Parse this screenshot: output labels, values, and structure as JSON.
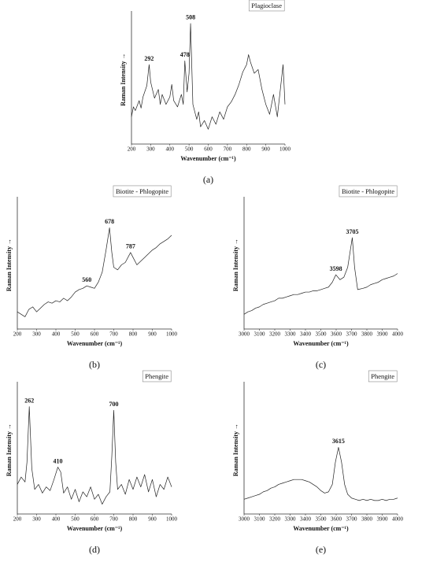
{
  "chart_data": [
    {
      "type": "line",
      "title": "Plagioclase",
      "label": "(a)",
      "x_label": "Wavenumber (cm⁻¹)",
      "y_label": "Raman Intensity →",
      "color": "#222",
      "xlim": [
        200,
        1000
      ],
      "xticks": [
        200,
        300,
        400,
        500,
        600,
        700,
        800,
        900,
        1000
      ],
      "ylim": [
        0,
        100
      ],
      "x": [
        200,
        210,
        220,
        240,
        250,
        260,
        280,
        292,
        300,
        320,
        340,
        350,
        360,
        380,
        400,
        410,
        420,
        440,
        460,
        470,
        478,
        490,
        500,
        508,
        520,
        540,
        550,
        560,
        580,
        600,
        620,
        640,
        660,
        680,
        700,
        720,
        740,
        760,
        780,
        800,
        810,
        820,
        840,
        860,
        880,
        900,
        920,
        940,
        960,
        980,
        990,
        1000
      ],
      "values": [
        20,
        28,
        25,
        33,
        27,
        36,
        45,
        62,
        48,
        35,
        42,
        30,
        38,
        30,
        36,
        46,
        33,
        28,
        38,
        30,
        65,
        40,
        55,
        95,
        30,
        18,
        24,
        12,
        17,
        10,
        20,
        14,
        24,
        18,
        28,
        32,
        38,
        46,
        56,
        62,
        70,
        64,
        55,
        58,
        42,
        30,
        22,
        38,
        20,
        48,
        62,
        30
      ],
      "peaks": [
        292,
        478,
        508
      ]
    },
    {
      "type": "line",
      "title": "Biotite - Phlogopite",
      "label": "(b)",
      "x_label": "Wavenumber (cm⁻¹)",
      "y_label": "Raman Intensity →",
      "color": "#222",
      "xlim": [
        200,
        1000
      ],
      "xticks": [
        200,
        300,
        400,
        500,
        600,
        700,
        800,
        900,
        1000
      ],
      "ylim": [
        0,
        100
      ],
      "x": [
        200,
        220,
        240,
        260,
        280,
        300,
        320,
        340,
        360,
        380,
        400,
        420,
        440,
        460,
        480,
        500,
        520,
        540,
        560,
        580,
        600,
        620,
        640,
        660,
        678,
        690,
        700,
        720,
        740,
        760,
        787,
        800,
        820,
        840,
        860,
        880,
        900,
        920,
        940,
        960,
        980,
        1000
      ],
      "values": [
        12,
        10,
        8,
        14,
        16,
        12,
        15,
        18,
        20,
        19,
        21,
        20,
        23,
        21,
        24,
        28,
        30,
        31,
        33,
        32,
        31,
        36,
        44,
        62,
        80,
        60,
        48,
        46,
        50,
        52,
        60,
        56,
        50,
        53,
        56,
        59,
        62,
        64,
        67,
        69,
        71,
        74
      ],
      "peaks": [
        560,
        678,
        787
      ]
    },
    {
      "type": "line",
      "title": "Biotite - Phlogopite",
      "label": "(c)",
      "x_label": "Wavenumber (cm⁻¹)",
      "y_label": "Raman Intensity →",
      "color": "#222",
      "xlim": [
        3000,
        4000
      ],
      "xticks": [
        3000,
        3100,
        3200,
        3300,
        3400,
        3500,
        3600,
        3700,
        3800,
        3900,
        4000
      ],
      "ylim": [
        0,
        100
      ],
      "x": [
        3000,
        3025,
        3050,
        3075,
        3100,
        3125,
        3150,
        3175,
        3200,
        3225,
        3250,
        3275,
        3300,
        3325,
        3350,
        3375,
        3400,
        3425,
        3450,
        3475,
        3500,
        3525,
        3550,
        3575,
        3598,
        3625,
        3650,
        3675,
        3690,
        3705,
        3720,
        3740,
        3775,
        3800,
        3825,
        3850,
        3875,
        3900,
        3925,
        3950,
        3975,
        4000
      ],
      "values": [
        10,
        12,
        13,
        15,
        16,
        18,
        19,
        20,
        21,
        23,
        23,
        24,
        25,
        26,
        26,
        27,
        28,
        28,
        29,
        29,
        30,
        31,
        32,
        36,
        42,
        38,
        40,
        48,
        60,
        72,
        48,
        30,
        31,
        32,
        34,
        35,
        36,
        38,
        39,
        40,
        41,
        43
      ],
      "peaks": [
        3598,
        3705
      ]
    },
    {
      "type": "line",
      "title": "Phengite",
      "label": "(d)",
      "x_label": "Wavenumber (cm⁻¹)",
      "y_label": "Raman Intensity →",
      "color": "#222",
      "xlim": [
        200,
        1000
      ],
      "xticks": [
        200,
        300,
        400,
        500,
        600,
        700,
        800,
        900,
        1000
      ],
      "ylim": [
        0,
        100
      ],
      "x": [
        200,
        220,
        240,
        250,
        262,
        275,
        290,
        310,
        330,
        350,
        370,
        390,
        410,
        425,
        440,
        460,
        480,
        500,
        520,
        540,
        560,
        580,
        600,
        620,
        640,
        660,
        680,
        690,
        700,
        710,
        720,
        740,
        760,
        780,
        800,
        820,
        840,
        860,
        880,
        900,
        920,
        940,
        960,
        980,
        1000
      ],
      "values": [
        22,
        28,
        24,
        40,
        85,
        35,
        18,
        22,
        15,
        20,
        17,
        26,
        36,
        32,
        15,
        20,
        10,
        18,
        8,
        16,
        12,
        20,
        10,
        14,
        6,
        12,
        16,
        45,
        82,
        40,
        18,
        22,
        14,
        26,
        18,
        28,
        20,
        30,
        16,
        26,
        12,
        22,
        18,
        28,
        20
      ],
      "peaks": [
        262,
        410,
        700
      ]
    },
    {
      "type": "line",
      "title": "Phengite",
      "label": "(e)",
      "x_label": "Wavenumber (cm⁻¹)",
      "y_label": "Raman Intensity →",
      "color": "#222",
      "xlim": [
        3000,
        4000
      ],
      "xticks": [
        3000,
        3100,
        3200,
        3300,
        3400,
        3500,
        3600,
        3700,
        3800,
        3900,
        4000
      ],
      "ylim": [
        0,
        100
      ],
      "x": [
        3000,
        3025,
        3050,
        3075,
        3100,
        3125,
        3150,
        3175,
        3200,
        3225,
        3250,
        3275,
        3300,
        3325,
        3350,
        3375,
        3400,
        3425,
        3450,
        3475,
        3500,
        3525,
        3550,
        3575,
        3595,
        3615,
        3635,
        3655,
        3675,
        3700,
        3725,
        3750,
        3775,
        3800,
        3825,
        3850,
        3875,
        3900,
        3925,
        3950,
        3975,
        4000
      ],
      "values": [
        10,
        11,
        12,
        13,
        14,
        16,
        17,
        19,
        20,
        22,
        23,
        24,
        25,
        26,
        26,
        26,
        25,
        24,
        22,
        20,
        17,
        15,
        16,
        22,
        40,
        52,
        40,
        22,
        14,
        11,
        10,
        9,
        10,
        9,
        10,
        9,
        9,
        10,
        9,
        10,
        10,
        11
      ],
      "peaks": [
        3615
      ]
    }
  ]
}
